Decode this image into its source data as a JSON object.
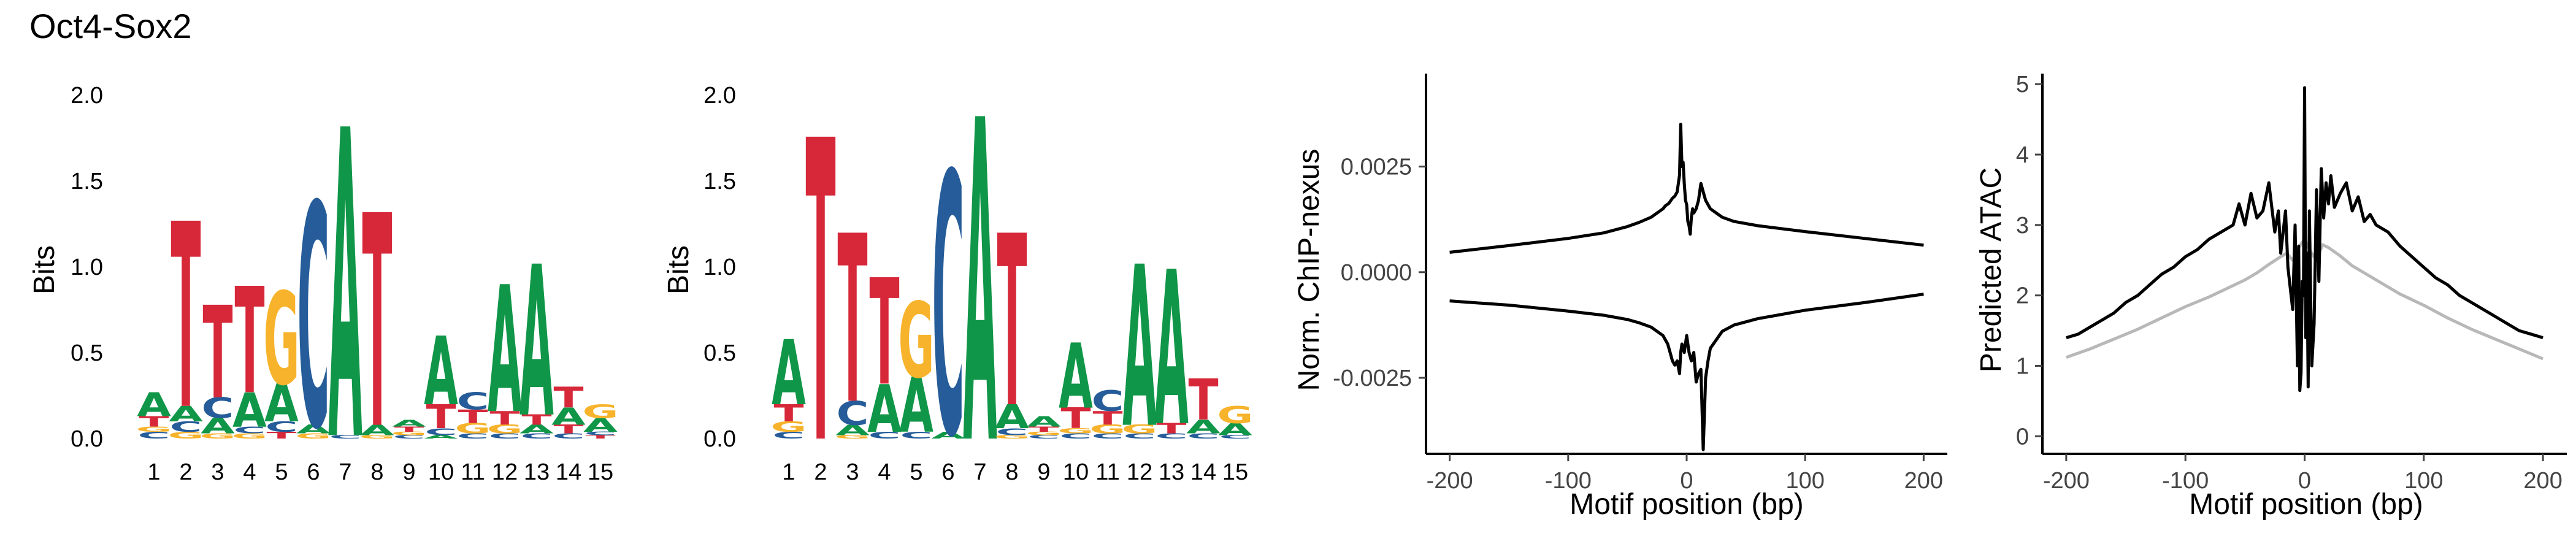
{
  "figure": {
    "title": "Oct4-Sox2"
  },
  "colors": {
    "A": "#109648",
    "C": "#255C99",
    "G": "#F7B32B",
    "T": "#D62839",
    "profile": "#000000",
    "profile_control": "#b8b8b8"
  },
  "chart_data": [
    {
      "type": "sequence-logo",
      "ylabel": "Bits",
      "ylim": [
        0,
        2.0
      ],
      "yticks": [
        "0.0",
        "0.5",
        "1.0",
        "1.5",
        "2.0"
      ],
      "positions": [
        "1",
        "2",
        "3",
        "4",
        "5",
        "6",
        "7",
        "8",
        "9",
        "10",
        "11",
        "12",
        "13",
        "14",
        "15"
      ],
      "columns": [
        [
          [
            "C",
            0.04
          ],
          [
            "G",
            0.03
          ],
          [
            "T",
            0.06
          ],
          [
            "A",
            0.14
          ]
        ],
        [
          [
            "G",
            0.04
          ],
          [
            "C",
            0.06
          ],
          [
            "A",
            0.09
          ],
          [
            "T",
            1.08
          ]
        ],
        [
          [
            "G",
            0.03
          ],
          [
            "A",
            0.09
          ],
          [
            "C",
            0.12
          ],
          [
            "T",
            0.54
          ]
        ],
        [
          [
            "G",
            0.03
          ],
          [
            "C",
            0.04
          ],
          [
            "A",
            0.2
          ],
          [
            "T",
            0.62
          ]
        ],
        [
          [
            "T",
            0.04
          ],
          [
            "C",
            0.06
          ],
          [
            "A",
            0.22
          ],
          [
            "G",
            0.54
          ]
        ],
        [
          [
            "G",
            0.03
          ],
          [
            "A",
            0.05
          ],
          [
            "C",
            1.3
          ]
        ],
        [
          [
            "C",
            0.02
          ],
          [
            "A",
            1.8
          ]
        ],
        [
          [
            "G",
            0.02
          ],
          [
            "A",
            0.06
          ],
          [
            "T",
            1.24
          ]
        ],
        [
          [
            "C",
            0.02
          ],
          [
            "G",
            0.02
          ],
          [
            "T",
            0.03
          ],
          [
            "A",
            0.04
          ]
        ],
        [
          [
            "A",
            0.02
          ],
          [
            "C",
            0.04
          ],
          [
            "T",
            0.14
          ],
          [
            "A",
            0.4
          ]
        ],
        [
          [
            "C",
            0.03
          ],
          [
            "G",
            0.06
          ],
          [
            "T",
            0.08
          ],
          [
            "C",
            0.1
          ]
        ],
        [
          [
            "C",
            0.03
          ],
          [
            "G",
            0.05
          ],
          [
            "T",
            0.08
          ],
          [
            "A",
            0.74
          ]
        ],
        [
          [
            "C",
            0.03
          ],
          [
            "A",
            0.05
          ],
          [
            "T",
            0.06
          ],
          [
            "A",
            0.88
          ]
        ],
        [
          [
            "C",
            0.03
          ],
          [
            "T",
            0.05
          ],
          [
            "A",
            0.1
          ],
          [
            "T",
            0.12
          ]
        ],
        [
          [
            "T",
            0.02
          ],
          [
            "C",
            0.02
          ],
          [
            "A",
            0.08
          ],
          [
            "G",
            0.08
          ]
        ]
      ]
    },
    {
      "type": "sequence-logo",
      "ylabel": "Bits",
      "ylim": [
        0,
        2.0
      ],
      "yticks": [
        "0.0",
        "0.5",
        "1.0",
        "1.5",
        "2.0"
      ],
      "positions": [
        "1",
        "2",
        "3",
        "4",
        "5",
        "6",
        "7",
        "8",
        "9",
        "10",
        "11",
        "12",
        "13",
        "14",
        "15"
      ],
      "columns": [
        [
          [
            "C",
            0.04
          ],
          [
            "G",
            0.06
          ],
          [
            "T",
            0.1
          ],
          [
            "A",
            0.38
          ]
        ],
        [
          [
            "T",
            1.76
          ]
        ],
        [
          [
            "G",
            0.02
          ],
          [
            "A",
            0.06
          ],
          [
            "C",
            0.14
          ],
          [
            "T",
            0.98
          ]
        ],
        [
          [
            "C",
            0.04
          ],
          [
            "A",
            0.28
          ],
          [
            "T",
            0.62
          ]
        ],
        [
          [
            "C",
            0.04
          ],
          [
            "A",
            0.32
          ],
          [
            "G",
            0.44
          ]
        ],
        [
          [
            "A",
            0.04
          ],
          [
            "C",
            1.52
          ]
        ],
        [
          [
            "A",
            1.88
          ]
        ],
        [
          [
            "G",
            0.02
          ],
          [
            "C",
            0.04
          ],
          [
            "A",
            0.14
          ],
          [
            "T",
            1.0
          ]
        ],
        [
          [
            "C",
            0.02
          ],
          [
            "G",
            0.02
          ],
          [
            "T",
            0.03
          ],
          [
            "A",
            0.06
          ]
        ],
        [
          [
            "C",
            0.03
          ],
          [
            "G",
            0.03
          ],
          [
            "T",
            0.12
          ],
          [
            "A",
            0.38
          ]
        ],
        [
          [
            "C",
            0.03
          ],
          [
            "G",
            0.05
          ],
          [
            "T",
            0.08
          ],
          [
            "C",
            0.12
          ]
        ],
        [
          [
            "C",
            0.03
          ],
          [
            "G",
            0.05
          ],
          [
            "A",
            0.94
          ]
        ],
        [
          [
            "C",
            0.03
          ],
          [
            "T",
            0.06
          ],
          [
            "A",
            0.9
          ]
        ],
        [
          [
            "C",
            0.03
          ],
          [
            "A",
            0.08
          ],
          [
            "T",
            0.24
          ]
        ],
        [
          [
            "C",
            0.02
          ],
          [
            "A",
            0.07
          ],
          [
            "G",
            0.1
          ]
        ]
      ]
    },
    {
      "type": "line",
      "xlabel": "Motif position (bp)",
      "ylabel": "Norm. ChIP-nexus",
      "xlim": [
        -220,
        220
      ],
      "ylim": [
        -0.0043,
        0.0047
      ],
      "xticks": [
        "-200",
        "-100",
        "0",
        "100",
        "200"
      ],
      "yticks": [
        "-0.0025",
        "0.0000",
        "0.0025"
      ],
      "series": [
        {
          "role": "positive-strand",
          "color": "#000000",
          "x": [
            -200,
            -150,
            -100,
            -70,
            -50,
            -40,
            -30,
            -25,
            -20,
            -18,
            -15,
            -12,
            -10,
            -8,
            -6,
            -5,
            -4,
            -3,
            -2,
            -1,
            0,
            1,
            2,
            3,
            4,
            5,
            6,
            8,
            10,
            12,
            14,
            16,
            18,
            20,
            25,
            30,
            40,
            60,
            100,
            150,
            200
          ],
          "y": [
            0.00047,
            0.00063,
            0.0008,
            0.00093,
            0.00108,
            0.00118,
            0.0013,
            0.0014,
            0.0015,
            0.00157,
            0.00163,
            0.00175,
            0.0018,
            0.0019,
            0.0023,
            0.0035,
            0.0025,
            0.0026,
            0.0021,
            0.0017,
            0.0016,
            0.0012,
            0.0011,
            0.0009,
            0.0013,
            0.0015,
            0.0014,
            0.0015,
            0.0017,
            0.0021,
            0.0019,
            0.0017,
            0.0016,
            0.0015,
            0.0014,
            0.0013,
            0.0012,
            0.0011,
            0.00096,
            0.0008,
            0.00064
          ]
        },
        {
          "role": "negative-strand",
          "color": "#000000",
          "x": [
            -200,
            -150,
            -100,
            -70,
            -50,
            -40,
            -30,
            -25,
            -20,
            -18,
            -16,
            -14,
            -12,
            -10,
            -8,
            -6,
            -5,
            -4,
            -2,
            0,
            2,
            4,
            6,
            8,
            10,
            12,
            14,
            16,
            18,
            20,
            25,
            30,
            40,
            60,
            100,
            150,
            200
          ],
          "y": [
            -0.00068,
            -0.00078,
            -0.00092,
            -0.00102,
            -0.00112,
            -0.0012,
            -0.0013,
            -0.0014,
            -0.0015,
            -0.0016,
            -0.0017,
            -0.0019,
            -0.0021,
            -0.0022,
            -0.0021,
            -0.0024,
            -0.0019,
            -0.0017,
            -0.0019,
            -0.0015,
            -0.0019,
            -0.0021,
            -0.0019,
            -0.0026,
            -0.0024,
            -0.0023,
            -0.0042,
            -0.0025,
            -0.0021,
            -0.0018,
            -0.0016,
            -0.0014,
            -0.00125,
            -0.0011,
            -0.0009,
            -0.00072,
            -0.00052
          ]
        }
      ]
    },
    {
      "type": "line",
      "xlabel": "Motif position (bp)",
      "ylabel": "Predicted ATAC",
      "xlim": [
        -220,
        220
      ],
      "ylim": [
        -0.25,
        5.15
      ],
      "xticks": [
        "-200",
        "-100",
        "0",
        "100",
        "200"
      ],
      "yticks": [
        "0",
        "1",
        "2",
        "3",
        "4",
        "5"
      ],
      "series": [
        {
          "role": "control",
          "color": "#b8b8b8",
          "x": [
            -200,
            -180,
            -160,
            -140,
            -120,
            -100,
            -80,
            -60,
            -50,
            -40,
            -30,
            -20,
            -15,
            -10,
            -5,
            0,
            5,
            10,
            15,
            20,
            30,
            40,
            50,
            60,
            80,
            100,
            120,
            140,
            160,
            180,
            200
          ],
          "y": [
            1.12,
            1.24,
            1.38,
            1.52,
            1.68,
            1.84,
            1.98,
            2.14,
            2.22,
            2.32,
            2.44,
            2.55,
            2.6,
            2.5,
            2.68,
            2.8,
            2.62,
            2.5,
            2.72,
            2.68,
            2.56,
            2.42,
            2.32,
            2.22,
            2.02,
            1.86,
            1.68,
            1.52,
            1.38,
            1.24,
            1.1
          ]
        },
        {
          "role": "motif",
          "color": "#000000",
          "x": [
            -200,
            -190,
            -180,
            -170,
            -160,
            -150,
            -140,
            -130,
            -120,
            -110,
            -100,
            -90,
            -80,
            -70,
            -60,
            -55,
            -50,
            -45,
            -40,
            -35,
            -30,
            -25,
            -22,
            -20,
            -18,
            -16,
            -14,
            -12,
            -10,
            -8,
            -6,
            -5,
            -4,
            -3,
            -2,
            -1,
            0,
            1,
            2,
            3,
            4,
            5,
            6,
            8,
            10,
            12,
            14,
            16,
            18,
            20,
            22,
            25,
            30,
            35,
            40,
            45,
            50,
            55,
            60,
            70,
            80,
            90,
            100,
            110,
            120,
            130,
            140,
            150,
            160,
            170,
            180,
            190,
            200
          ],
          "y": [
            1.4,
            1.45,
            1.55,
            1.65,
            1.75,
            1.9,
            2.0,
            2.15,
            2.3,
            2.4,
            2.55,
            2.65,
            2.8,
            2.9,
            3.0,
            3.3,
            3.0,
            3.45,
            3.1,
            3.2,
            3.6,
            2.9,
            3.2,
            2.6,
            2.9,
            3.2,
            2.4,
            2.1,
            1.8,
            3.0,
            1.0,
            2.7,
            0.65,
            0.9,
            2.2,
            2.0,
            4.95,
            1.4,
            2.6,
            0.7,
            3.2,
            2.1,
            1.0,
            1.6,
            3.5,
            2.2,
            3.8,
            3.1,
            3.6,
            3.3,
            3.7,
            3.25,
            3.45,
            3.6,
            3.2,
            3.4,
            3.05,
            3.15,
            3.0,
            2.9,
            2.7,
            2.55,
            2.4,
            2.25,
            2.15,
            2.0,
            1.9,
            1.8,
            1.7,
            1.6,
            1.5,
            1.45,
            1.4
          ]
        }
      ]
    }
  ]
}
